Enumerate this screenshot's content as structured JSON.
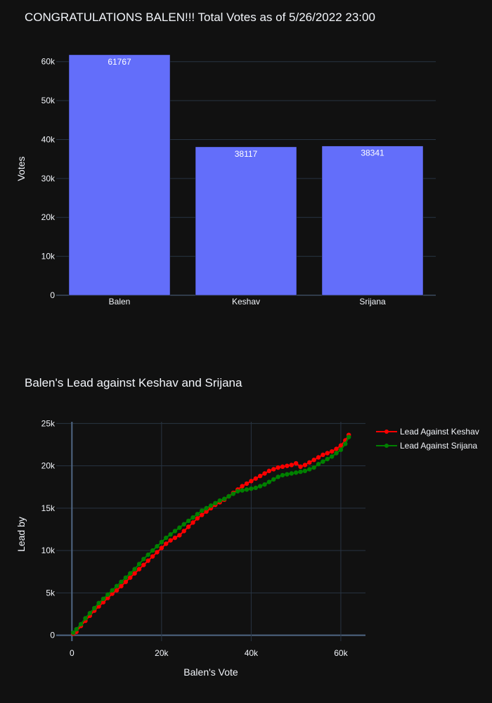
{
  "chart_data": [
    {
      "type": "bar",
      "title": "CONGRATULATIONS BALEN!!!   Total Votes as of 5/26/2022 23:00",
      "ylabel": "Votes",
      "xlabel": "",
      "categories": [
        "Balen",
        "Keshav",
        "Srijana"
      ],
      "values": [
        61767,
        38117,
        38341
      ],
      "value_labels": [
        "61767",
        "38117",
        "38341"
      ],
      "ylim": [
        0,
        65000
      ],
      "yticks": [
        0,
        10000,
        20000,
        30000,
        40000,
        50000,
        60000
      ],
      "ytick_labels": [
        "0",
        "10k",
        "20k",
        "30k",
        "40k",
        "50k",
        "60k"
      ],
      "bar_color": "#636efa",
      "grid": true
    },
    {
      "type": "line",
      "title": "Balen's Lead against Keshav and Srijana",
      "xlabel": "Balen's Vote",
      "ylabel": "Lead by",
      "xlim": [
        -3500,
        65500
      ],
      "ylim": [
        -700,
        25200
      ],
      "xticks": [
        0,
        20000,
        40000,
        60000
      ],
      "xtick_labels": [
        "0",
        "20k",
        "40k",
        "60k"
      ],
      "yticks": [
        0,
        5000,
        10000,
        15000,
        20000,
        25000
      ],
      "ytick_labels": [
        "0",
        "5k",
        "10k",
        "15k",
        "20k",
        "25k"
      ],
      "legend_position": "top-right",
      "grid": true,
      "series": [
        {
          "name": "Lead Against Keshav",
          "color": "#ff0000",
          "x": [
            300,
            1000,
            2000,
            3000,
            4000,
            5000,
            6000,
            7000,
            8000,
            9000,
            10000,
            11000,
            12000,
            13000,
            14000,
            15000,
            16000,
            17000,
            18000,
            19000,
            20000,
            21000,
            22000,
            23000,
            24000,
            25000,
            26000,
            27000,
            28000,
            29000,
            30000,
            31000,
            32000,
            33000,
            34000,
            35000,
            36000,
            37000,
            38000,
            39000,
            40000,
            41000,
            42000,
            43000,
            44000,
            45000,
            46000,
            47000,
            48000,
            49000,
            50000,
            51000,
            52000,
            53000,
            54000,
            55000,
            56000,
            57000,
            58000,
            59000,
            60000,
            61000,
            61767
          ],
          "y": [
            200,
            400,
            1100,
            1700,
            2300,
            2900,
            3400,
            3900,
            4400,
            4900,
            5300,
            5800,
            6300,
            6800,
            7300,
            7800,
            8300,
            8800,
            9300,
            9800,
            10300,
            10800,
            11200,
            11500,
            11800,
            12300,
            12800,
            13300,
            13800,
            14200,
            14600,
            15000,
            15400,
            15700,
            16000,
            16400,
            16800,
            17200,
            17600,
            17900,
            18200,
            18500,
            18800,
            19100,
            19400,
            19600,
            19800,
            19900,
            20000,
            20100,
            20300,
            19900,
            20100,
            20400,
            20700,
            21000,
            21300,
            21500,
            21700,
            22000,
            22400,
            23000,
            23650
          ]
        },
        {
          "name": "Lead Against Srijana",
          "color": "#008000",
          "x": [
            300,
            1000,
            2000,
            3000,
            4000,
            5000,
            6000,
            7000,
            8000,
            9000,
            10000,
            11000,
            12000,
            13000,
            14000,
            15000,
            16000,
            17000,
            18000,
            19000,
            20000,
            21000,
            22000,
            23000,
            24000,
            25000,
            26000,
            27000,
            28000,
            29000,
            30000,
            31000,
            32000,
            33000,
            34000,
            35000,
            36000,
            37000,
            38000,
            39000,
            40000,
            41000,
            42000,
            43000,
            44000,
            45000,
            46000,
            47000,
            48000,
            49000,
            50000,
            51000,
            52000,
            53000,
            54000,
            55000,
            56000,
            57000,
            58000,
            59000,
            60000,
            61000,
            61767
          ],
          "y": [
            300,
            700,
            1300,
            2000,
            2600,
            3200,
            3800,
            4300,
            4800,
            5300,
            5800,
            6300,
            6800,
            7300,
            7800,
            8400,
            9000,
            9500,
            10000,
            10500,
            11000,
            11500,
            11900,
            12300,
            12700,
            13100,
            13500,
            13900,
            14300,
            14700,
            15000,
            15300,
            15600,
            15900,
            16100,
            16400,
            16700,
            17000,
            17100,
            17200,
            17300,
            17400,
            17600,
            17800,
            18100,
            18400,
            18700,
            18900,
            19000,
            19100,
            19200,
            19300,
            19400,
            19600,
            19800,
            20200,
            20500,
            20800,
            21100,
            21500,
            21900,
            22600,
            23400
          ]
        }
      ]
    }
  ]
}
